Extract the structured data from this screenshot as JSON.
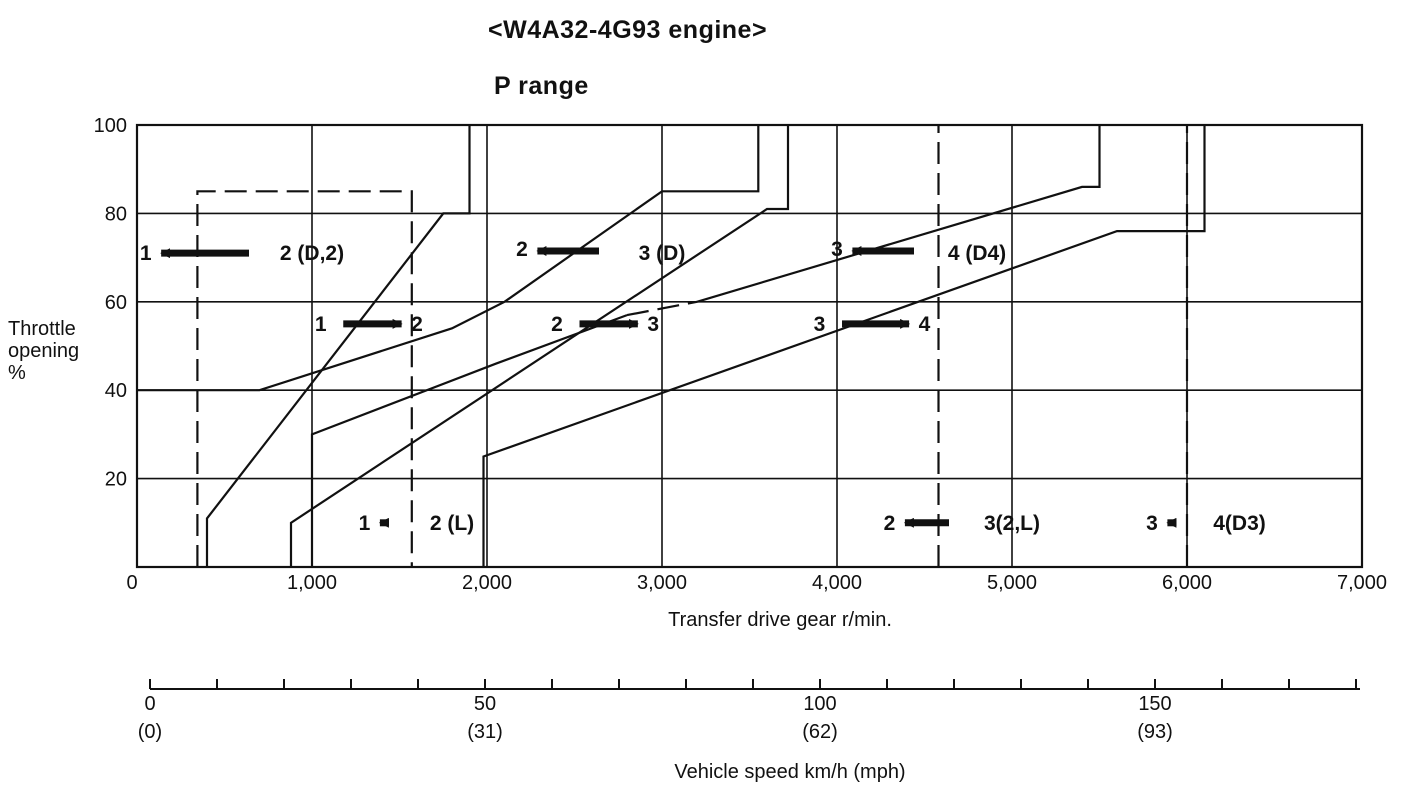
{
  "chart_title": "<W4A32-4G93 engine>",
  "chart_subtitle": "P range",
  "y_axis_label_lines": [
    "Throttle",
    "opening",
    "%"
  ],
  "x_axis_label": "Transfer drive gear r/min.",
  "speed_axis_label": "Vehicle speed km/h (mph)",
  "speed_ticks": [
    {
      "kmh": "0",
      "mph": "(0)"
    },
    {
      "kmh": "50",
      "mph": "(31)"
    },
    {
      "kmh": "100",
      "mph": "(62)"
    },
    {
      "kmh": "150",
      "mph": "(93)"
    }
  ],
  "chart_data": {
    "type": "line",
    "title": "<W4A32-4G93 engine>",
    "subtitle": "P range",
    "xlabel": "Transfer drive gear r/min.",
    "ylabel": "Throttle opening %",
    "xlim": [
      0,
      7000
    ],
    "ylim": [
      0,
      100
    ],
    "x_ticks": [
      0,
      1000,
      2000,
      3000,
      4000,
      5000,
      6000,
      7000
    ],
    "x_tick_labels": [
      "0",
      "1,000",
      "2,000",
      "3,000",
      "4,000",
      "5,000",
      "6,000",
      "7,000"
    ],
    "y_ticks": [
      0,
      20,
      40,
      60,
      80,
      100
    ],
    "y_tick_labels": [
      "0",
      "20",
      "40",
      "60",
      "80",
      "100"
    ],
    "grid": true,
    "secondary_x_axis": {
      "label": "Vehicle speed km/h (mph)",
      "ticks_kmh": [
        0,
        50,
        100,
        150
      ],
      "ticks_mph": [
        0,
        31,
        62,
        93
      ]
    },
    "series": [
      {
        "dash": true,
        "points": [
          [
            345,
            0
          ],
          [
            345,
            85
          ],
          [
            1570,
            85
          ],
          [
            1570,
            0
          ]
        ]
      },
      {
        "dash": false,
        "points": [
          [
            400,
            0
          ],
          [
            400,
            11
          ],
          [
            1750,
            80
          ],
          [
            1900,
            80
          ],
          [
            1900,
            100
          ]
        ]
      },
      {
        "dash": false,
        "points": [
          [
            0,
            40
          ],
          [
            700,
            40
          ],
          [
            1800,
            54
          ],
          [
            2100,
            60
          ],
          [
            3000,
            85
          ],
          [
            3550,
            85
          ],
          [
            3550,
            100
          ]
        ]
      },
      {
        "dash": false,
        "points": [
          [
            1000,
            0
          ],
          [
            1000,
            30
          ],
          [
            2050,
            46
          ],
          [
            2800,
            57
          ]
        ]
      },
      {
        "dash": true,
        "points": [
          [
            2800,
            57
          ],
          [
            3200,
            60
          ]
        ]
      },
      {
        "dash": false,
        "points": [
          [
            3200,
            60
          ],
          [
            5400,
            86
          ],
          [
            5500,
            86
          ],
          [
            5500,
            100
          ]
        ]
      },
      {
        "dash": false,
        "points": [
          [
            880,
            0
          ],
          [
            880,
            10
          ],
          [
            3600,
            81
          ],
          [
            3720,
            81
          ],
          [
            3720,
            100
          ]
        ]
      },
      {
        "dash": false,
        "points": [
          [
            1980,
            0
          ],
          [
            1980,
            25
          ],
          [
            5600,
            76
          ],
          [
            6100,
            76
          ],
          [
            6100,
            100
          ]
        ]
      },
      {
        "dash": true,
        "points": [
          [
            4580,
            0
          ],
          [
            4580,
            100
          ]
        ]
      },
      {
        "dash": true,
        "points": [
          [
            6000,
            0
          ],
          [
            6000,
            100
          ]
        ]
      }
    ],
    "annotations": [
      {
        "text": "1",
        "x": 50,
        "y": 71
      },
      {
        "text": "2 (D,2)",
        "x": 1000,
        "y": 71
      },
      {
        "text": "2",
        "x": 2200,
        "y": 72
      },
      {
        "text": "3 (D)",
        "x": 3000,
        "y": 71
      },
      {
        "text": "3",
        "x": 4000,
        "y": 72
      },
      {
        "text": "4 (D4)",
        "x": 4800,
        "y": 71
      },
      {
        "text": "1",
        "x": 1050,
        "y": 55
      },
      {
        "text": "2",
        "x": 1600,
        "y": 55
      },
      {
        "text": "2",
        "x": 2400,
        "y": 55
      },
      {
        "text": "3",
        "x": 2950,
        "y": 55
      },
      {
        "text": "3",
        "x": 3900,
        "y": 55
      },
      {
        "text": "4",
        "x": 4500,
        "y": 55
      },
      {
        "text": "1",
        "x": 1300,
        "y": 10
      },
      {
        "text": "2 (L)",
        "x": 1800,
        "y": 10
      },
      {
        "text": "2",
        "x": 4300,
        "y": 10
      },
      {
        "text": "3(2,L)",
        "x": 5000,
        "y": 10
      },
      {
        "text": "3",
        "x": 5800,
        "y": 10
      },
      {
        "text": "4(D3)",
        "x": 6300,
        "y": 10
      }
    ]
  }
}
